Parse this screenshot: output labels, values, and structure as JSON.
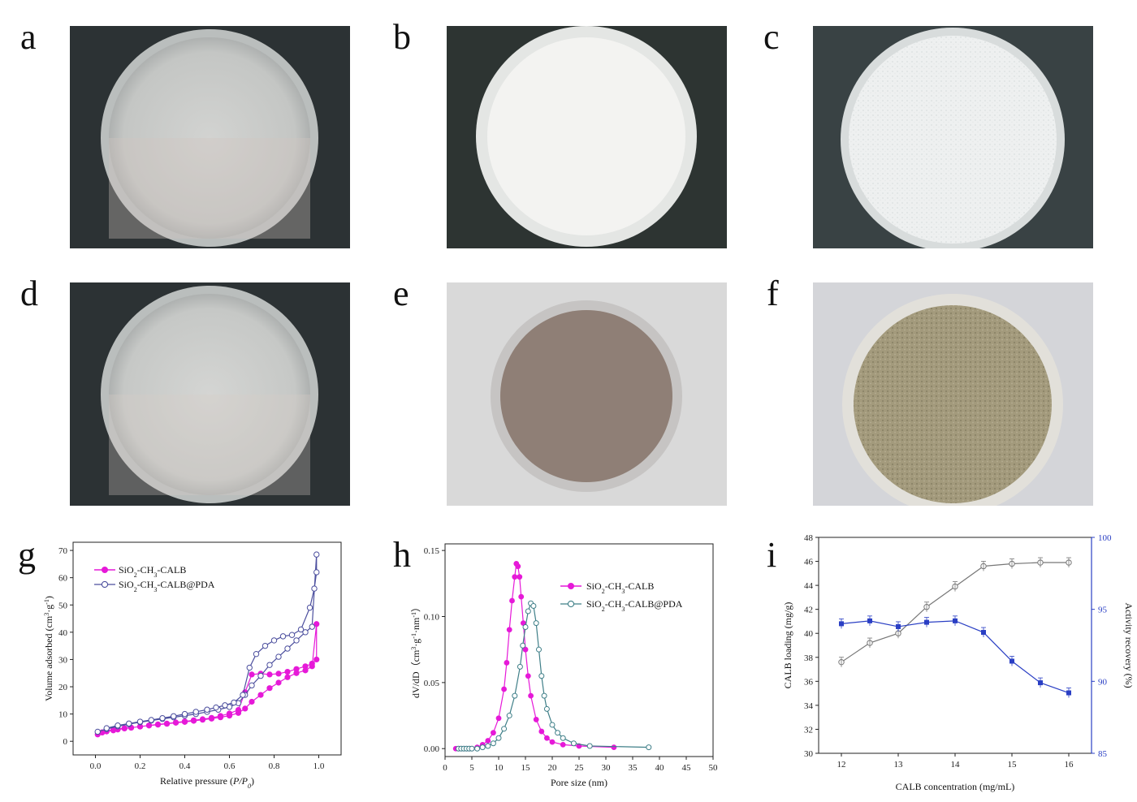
{
  "figure": {
    "panel_labels": [
      "a",
      "b",
      "c",
      "d",
      "e",
      "f",
      "g",
      "h",
      "i"
    ],
    "photos": [
      {
        "panel": "a",
        "depicts": "petri dish with clear liquid",
        "bg": "#2c3234",
        "dish": "#c9cbc9"
      },
      {
        "panel": "b",
        "depicts": "petri dish with white emulsion",
        "bg": "#2d3432",
        "dish": "#f1f1ef"
      },
      {
        "panel": "c",
        "depicts": "petri dish with white powder",
        "bg": "#394244",
        "dish": "#eceeee"
      },
      {
        "panel": "d",
        "depicts": "petri dish with clear liquid",
        "bg": "#2c3234",
        "dish": "#c9cbc9"
      },
      {
        "panel": "e",
        "depicts": "petri dish with brown suspension",
        "bg": "#d9d9d9",
        "dish": "#8f7f76"
      },
      {
        "panel": "f",
        "depicts": "petri dish with brown powder",
        "bg": "#d4d5d9",
        "dish": "#a39a7c"
      }
    ]
  },
  "chart_data": [
    {
      "panel": "g",
      "type": "line",
      "xlabel": "Relative pressure (P/P0)",
      "ylabel": "Volume adsorbed (cm3·g-1)",
      "xlim": [
        -0.1,
        1.1
      ],
      "ylim": [
        -5,
        73
      ],
      "x_ticks": [
        "0.0",
        "0.2",
        "0.4",
        "0.6",
        "0.8",
        "1.0"
      ],
      "y_ticks": [
        "0",
        "10",
        "20",
        "30",
        "40",
        "50",
        "60",
        "70"
      ],
      "legend_position": "top-left",
      "series": [
        {
          "name": "SiO2-CH3-CALB",
          "color": "#e619d8",
          "marker": "filled-circle",
          "x": [
            0.01,
            0.03,
            0.05,
            0.08,
            0.1,
            0.13,
            0.16,
            0.2,
            0.24,
            0.28,
            0.32,
            0.36,
            0.4,
            0.44,
            0.48,
            0.52,
            0.56,
            0.6,
            0.64,
            0.67,
            0.7,
            0.74,
            0.78,
            0.82,
            0.86,
            0.9,
            0.94,
            0.97,
            0.99,
            0.99,
            0.97,
            0.94,
            0.9,
            0.86,
            0.82,
            0.78,
            0.74,
            0.7,
            0.67,
            0.64,
            0.6,
            0.56,
            0.52,
            0.48,
            0.44,
            0.4,
            0.36,
            0.32,
            0.28,
            0.24,
            0.2,
            0.16,
            0.13,
            0.1,
            0.08,
            0.05,
            0.03
          ],
          "y": [
            2.5,
            3.2,
            3.6,
            4.0,
            4.3,
            4.7,
            5.0,
            5.4,
            5.8,
            6.1,
            6.4,
            6.8,
            7.1,
            7.5,
            7.9,
            8.3,
            8.8,
            9.4,
            10.4,
            12,
            14.5,
            17,
            19.5,
            21.5,
            23.5,
            25,
            26,
            27.5,
            43,
            30,
            28.5,
            27.5,
            26.5,
            25.5,
            24.8,
            24.5,
            24.8,
            24.5,
            18,
            11.5,
            10.2,
            9.3,
            8.6,
            8.1,
            7.7,
            7.3,
            6.9,
            6.5,
            6.2,
            5.8,
            5.4,
            5.0,
            4.8,
            4.5,
            4.2,
            3.8,
            3.3
          ]
        },
        {
          "name": "SiO2-CH3-CALB@PDA",
          "color": "#4c4f9e",
          "marker": "open-circle",
          "x": [
            0.01,
            0.05,
            0.1,
            0.15,
            0.2,
            0.25,
            0.3,
            0.35,
            0.4,
            0.45,
            0.5,
            0.55,
            0.6,
            0.64,
            0.67,
            0.7,
            0.74,
            0.78,
            0.82,
            0.86,
            0.9,
            0.94,
            0.97,
            0.99,
            0.99,
            0.98,
            0.96,
            0.92,
            0.88,
            0.84,
            0.8,
            0.76,
            0.72,
            0.69,
            0.66,
            0.62,
            0.58,
            0.54,
            0.5,
            0.45,
            0.4,
            0.35,
            0.3,
            0.25,
            0.2,
            0.15,
            0.1,
            0.05
          ],
          "y": [
            3.5,
            4.5,
            5.5,
            6.3,
            7.0,
            7.6,
            8.2,
            8.8,
            9.4,
            10.0,
            10.8,
            11.6,
            12.6,
            14,
            17,
            20.5,
            24,
            28,
            31,
            34,
            37,
            40,
            42,
            68.5,
            62,
            56,
            49,
            41,
            39,
            38.5,
            37,
            35,
            32,
            27,
            17,
            14.2,
            13.2,
            12.4,
            11.6,
            10.8,
            10.0,
            9.2,
            8.5,
            7.8,
            7.2,
            6.5,
            5.8,
            4.8
          ]
        }
      ]
    },
    {
      "panel": "h",
      "type": "line",
      "xlabel": "Pore size (nm)",
      "ylabel": "dV/dD（cm3·g-1·nm-1）",
      "xlim": [
        0,
        50
      ],
      "ylim": [
        -0.006,
        0.155
      ],
      "x_ticks": [
        "0",
        "5",
        "10",
        "15",
        "20",
        "25",
        "30",
        "35",
        "40",
        "45",
        "50"
      ],
      "y_ticks": [
        "0.00",
        "0.05",
        "0.10",
        "0.15"
      ],
      "legend_position": "right",
      "series": [
        {
          "name": "SiO2-CH3-CALB",
          "color": "#e619d8",
          "marker": "filled-circle",
          "x": [
            2,
            2.5,
            3,
            3.5,
            4,
            4.5,
            5,
            6,
            7,
            8,
            9,
            10,
            11,
            11.5,
            12,
            12.5,
            13,
            13.3,
            13.6,
            13.9,
            14.2,
            14.6,
            15,
            15.5,
            16,
            17,
            18,
            19,
            20,
            22,
            25,
            31.5
          ],
          "y": [
            0,
            0,
            0,
            0,
            0,
            0,
            0,
            0.001,
            0.003,
            0.006,
            0.012,
            0.023,
            0.045,
            0.065,
            0.09,
            0.112,
            0.13,
            0.14,
            0.138,
            0.13,
            0.115,
            0.095,
            0.075,
            0.055,
            0.04,
            0.022,
            0.013,
            0.008,
            0.005,
            0.003,
            0.002,
            0.001
          ]
        },
        {
          "name": "SiO2-CH3-CALB@PDA",
          "color": "#3f7f88",
          "marker": "open-circle",
          "x": [
            2.5,
            3,
            3.5,
            4,
            4.5,
            5,
            6,
            7,
            8,
            9,
            10,
            11,
            12,
            13,
            14,
            14.5,
            15,
            15.5,
            16,
            16.5,
            17,
            17.5,
            18,
            18.5,
            19,
            20,
            21,
            22,
            24,
            27,
            38
          ],
          "y": [
            0,
            0,
            0,
            0,
            0,
            0,
            0,
            0.001,
            0.002,
            0.004,
            0.008,
            0.015,
            0.025,
            0.04,
            0.062,
            0.078,
            0.092,
            0.104,
            0.11,
            0.108,
            0.095,
            0.075,
            0.055,
            0.04,
            0.03,
            0.018,
            0.012,
            0.008,
            0.004,
            0.002,
            0.001
          ]
        }
      ]
    },
    {
      "panel": "i",
      "type": "line",
      "xlabel": "CALB concentration (mg/mL)",
      "ylabel": "CALB loading (mg/g)",
      "ylabel_right": "Activity recovery (%)",
      "xlim": [
        11.6,
        16.4
      ],
      "ylim": [
        30,
        48
      ],
      "ylim_right": [
        85,
        100
      ],
      "x_ticks": [
        "12",
        "13",
        "14",
        "15",
        "16"
      ],
      "y_ticks": [
        "30",
        "32",
        "34",
        "36",
        "38",
        "40",
        "42",
        "44",
        "46",
        "48"
      ],
      "y_ticks_right": [
        "85",
        "90",
        "95",
        "100"
      ],
      "series": [
        {
          "name": "CALB loading",
          "color": "#777777",
          "marker": "open-circle",
          "axis": "left",
          "x": [
            12,
            12.5,
            13,
            13.5,
            14,
            14.5,
            15,
            15.5,
            16
          ],
          "y": [
            37.6,
            39.2,
            40.0,
            42.2,
            43.9,
            45.6,
            45.8,
            45.9,
            45.9
          ]
        },
        {
          "name": "Activity recovery",
          "color": "#2a3fc4",
          "marker": "filled-square",
          "axis": "right",
          "x": [
            12,
            12.5,
            13,
            13.5,
            14,
            14.5,
            15,
            15.5,
            16
          ],
          "y": [
            94.0,
            94.2,
            93.8,
            94.1,
            94.2,
            93.4,
            91.4,
            89.9,
            89.2
          ]
        }
      ]
    }
  ]
}
